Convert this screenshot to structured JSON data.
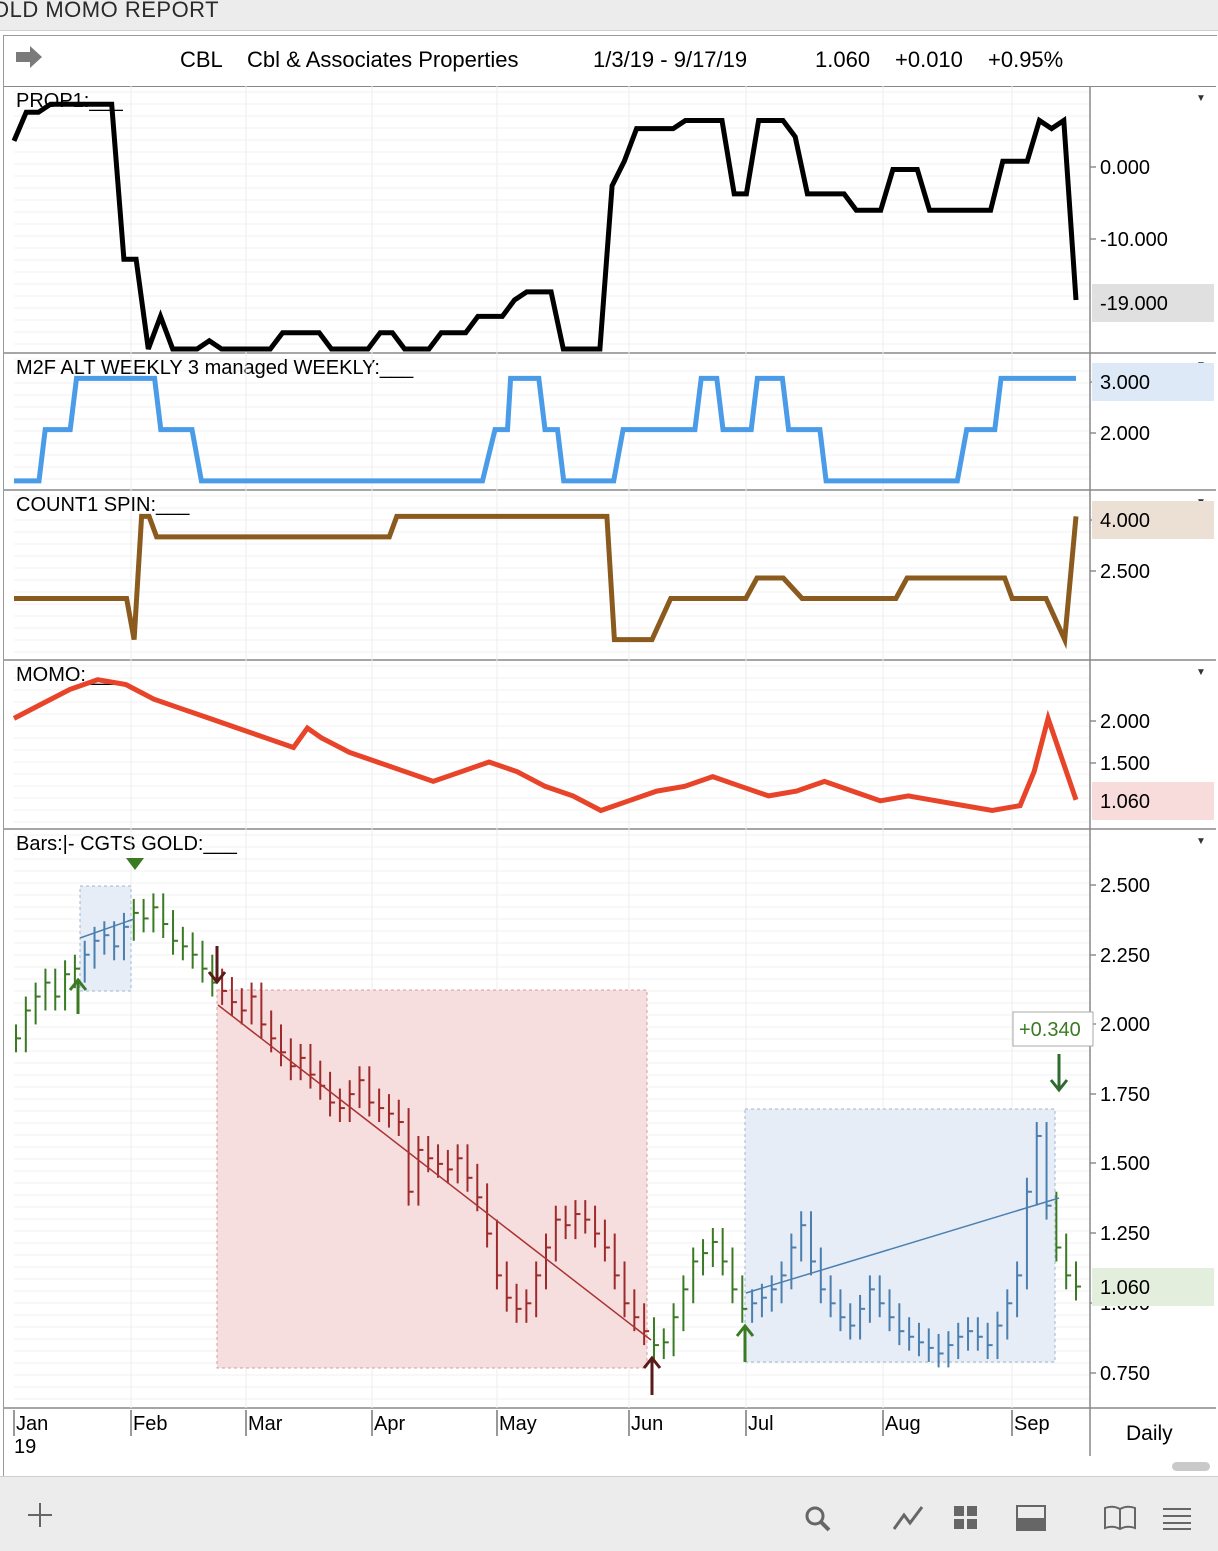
{
  "window": {
    "title": "OLD MOMO REPORT"
  },
  "header": {
    "symbol": "CBL",
    "company": "Cbl & Associates Properties",
    "date_range": "1/3/19 - 9/17/19",
    "last": "1.060",
    "change": "+0.010",
    "change_pct": "+0.95%"
  },
  "timeframe": "Daily",
  "x_axis": {
    "months": [
      "Jan",
      "Feb",
      "Mar",
      "Apr",
      "May",
      "Jun",
      "Jul",
      "Aug",
      "Sep"
    ],
    "year": "19"
  },
  "colors": {
    "prop1": "#000000",
    "m2f": "#4a9be8",
    "count1": "#8b5a1e",
    "momo": "#e8442a",
    "bar_up": "#3a7a23",
    "bar_down": "#9e2a2b",
    "bar_blue": "#4a7fb0",
    "red_box": "#f7dede",
    "blue_box": "#e6edf6",
    "arrow_up": "#3a7a23",
    "arrow_down": "#5a1a1a"
  },
  "icons": [
    "arrow-right-icon",
    "plus-icon",
    "search-icon",
    "line-chart-icon",
    "grid-icon",
    "panel-icon",
    "book-icon",
    "menu-icon"
  ],
  "chart_data": [
    {
      "type": "line",
      "panel": "PROP1",
      "label": "PROP1:___",
      "yticks": [
        "0.000",
        "-10.000"
      ],
      "last_value": "-19.000",
      "ylim": [
        -25,
        6
      ],
      "x": [
        0,
        3,
        6,
        9,
        12,
        15,
        18,
        21,
        24,
        27,
        30,
        33,
        36,
        39,
        42,
        45,
        48,
        51,
        54,
        57,
        60,
        63,
        66,
        69,
        72,
        75,
        78,
        81,
        84,
        87,
        90,
        93,
        96,
        99,
        102,
        105,
        108,
        111,
        114,
        117,
        120,
        123,
        126,
        129,
        132,
        135,
        138,
        141,
        144,
        147,
        150,
        153,
        156,
        159,
        162,
        165,
        168,
        171,
        174,
        177,
        180,
        183,
        186,
        189,
        192,
        195,
        198,
        201,
        204,
        207,
        210,
        213,
        216,
        219,
        222,
        225,
        228,
        231,
        234,
        237,
        240,
        243,
        246,
        249,
        252,
        255,
        258,
        261
      ],
      "values": [
        0.5,
        4,
        4,
        5,
        5,
        5,
        5,
        5,
        5,
        -14,
        -14,
        -25,
        -21,
        -25,
        -25,
        -25,
        -24,
        -25,
        -25,
        -25,
        -25,
        -25,
        -23,
        -23,
        -23,
        -23,
        -25,
        -25,
        -25,
        -25,
        -23,
        -23,
        -25,
        -25,
        -25,
        -23,
        -23,
        -23,
        -21,
        -21,
        -21,
        -19,
        -18,
        -18,
        -18,
        -25,
        -25,
        -25,
        -25,
        -5,
        -2,
        2,
        2,
        2,
        2,
        3,
        3,
        3,
        3,
        -6,
        -6,
        3,
        3,
        3,
        1,
        -6,
        -6,
        -6,
        -6,
        -8,
        -8,
        -8,
        -3,
        -3,
        -3,
        -8,
        -8,
        -8,
        -8,
        -8,
        -8,
        -2,
        -2,
        -2,
        3,
        2,
        3,
        -19
      ]
    },
    {
      "type": "line",
      "panel": "M2F",
      "label": "M2F ALT WEEKLY 3 managed WEEKLY:___",
      "yticks": [
        "3.000",
        "2.000"
      ],
      "last_value": "3.000",
      "ylim": [
        0.9,
        3.3
      ],
      "x": [
        0,
        8,
        10,
        18,
        20,
        30,
        33,
        45,
        47,
        57,
        60,
        74,
        76,
        150,
        154,
        158,
        159,
        168,
        170,
        174,
        176,
        192,
        195,
        218,
        220,
        225,
        227,
        236,
        238,
        246,
        248,
        258,
        260,
        270,
        272,
        302,
        305,
        314,
        316,
        332,
        334,
        340
      ],
      "values": [
        1,
        1,
        2,
        2,
        3,
        3,
        3,
        3,
        2,
        2,
        1,
        1,
        1,
        1,
        2,
        2,
        3,
        3,
        2,
        2,
        1,
        1,
        2,
        2,
        3,
        3,
        2,
        2,
        3,
        3,
        2,
        2,
        1,
        1,
        1,
        1,
        2,
        2,
        3,
        3,
        3,
        3
      ]
    },
    {
      "type": "line",
      "panel": "COUNT1",
      "label": "COUNT1 SPIN:___",
      "yticks": [
        "4.000",
        "2.500"
      ],
      "last_value": "4.000",
      "ylim": [
        0.6,
        4.4
      ],
      "x": [
        0,
        30,
        32,
        34,
        36,
        38,
        40,
        55,
        58,
        100,
        102,
        104,
        155,
        158,
        160,
        170,
        175,
        195,
        198,
        205,
        210,
        235,
        238,
        264,
        266,
        268,
        270,
        275,
        280,
        283
      ],
      "values": [
        2,
        2,
        1,
        4,
        4,
        3.5,
        3.5,
        3.5,
        3.5,
        3.5,
        4,
        4,
        4,
        4,
        1,
        1,
        2,
        2,
        2.5,
        2.5,
        2,
        2,
        2.5,
        2.5,
        2,
        2,
        2,
        2,
        1,
        4
      ]
    },
    {
      "type": "line",
      "panel": "MOMO",
      "label": "MOMO:___",
      "yticks": [
        "2.000",
        "1.500"
      ],
      "last_value": "1.060",
      "ylim": [
        0.8,
        2.4
      ],
      "x": [
        0,
        10,
        20,
        30,
        40,
        50,
        60,
        70,
        80,
        90,
        100,
        105,
        110,
        120,
        130,
        140,
        150,
        160,
        170,
        180,
        190,
        200,
        210,
        220,
        230,
        240,
        250,
        260,
        270,
        280,
        290,
        300,
        310,
        320,
        330,
        340,
        350,
        360,
        365,
        370,
        380
      ],
      "values": [
        1.9,
        2.05,
        2.2,
        2.3,
        2.25,
        2.1,
        2.0,
        1.9,
        1.8,
        1.7,
        1.6,
        1.8,
        1.7,
        1.55,
        1.45,
        1.35,
        1.25,
        1.35,
        1.45,
        1.35,
        1.2,
        1.1,
        0.95,
        1.05,
        1.15,
        1.2,
        1.3,
        1.2,
        1.1,
        1.15,
        1.25,
        1.15,
        1.05,
        1.1,
        1.05,
        1.0,
        0.95,
        1.0,
        1.35,
        1.9,
        1.06
      ]
    },
    {
      "type": "bar",
      "panel": "Bars",
      "label": "Bars:|-   CGTS  GOLD:___",
      "yticks": [
        "2.500",
        "2.250",
        "2.000",
        "1.750",
        "1.500",
        "1.250",
        "1.000",
        "0.750"
      ],
      "last_value": "1.060",
      "annotation": "+0.340",
      "ylim": [
        0.65,
        2.6
      ],
      "closes": [
        1.95,
        2.05,
        2.1,
        2.15,
        2.1,
        2.18,
        2.2,
        2.25,
        2.3,
        2.32,
        2.28,
        2.35,
        2.4,
        2.38,
        2.42,
        2.36,
        2.3,
        2.28,
        2.25,
        2.2,
        2.15,
        2.12,
        2.08,
        2.05,
        2.1,
        2.0,
        1.95,
        1.9,
        1.85,
        1.88,
        1.82,
        1.78,
        1.72,
        1.7,
        1.75,
        1.8,
        1.72,
        1.7,
        1.68,
        1.65,
        1.4,
        1.55,
        1.52,
        1.5,
        1.48,
        1.52,
        1.45,
        1.38,
        1.25,
        1.1,
        1.02,
        0.98,
        1.0,
        1.1,
        1.2,
        1.3,
        1.28,
        1.32,
        1.3,
        1.25,
        1.2,
        1.1,
        1.0,
        0.95,
        0.9,
        0.85,
        0.86,
        0.95,
        1.05,
        1.15,
        1.18,
        1.22,
        1.15,
        1.05,
        0.98,
        1.0,
        1.02,
        1.05,
        1.1,
        1.2,
        1.28,
        1.15,
        1.05,
        1.0,
        0.95,
        0.92,
        0.98,
        1.05,
        1.0,
        0.95,
        0.9,
        0.88,
        0.86,
        0.84,
        0.82,
        0.85,
        0.88,
        0.9,
        0.88,
        0.85,
        0.92,
        1.0,
        1.1,
        1.4,
        1.6,
        1.35,
        1.2,
        1.1,
        1.06
      ]
    }
  ]
}
